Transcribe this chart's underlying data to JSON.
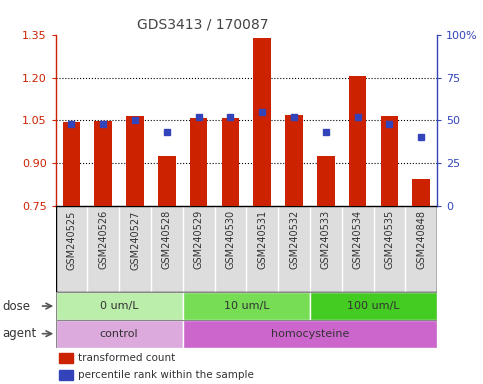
{
  "title": "GDS3413 / 170087",
  "samples": [
    "GSM240525",
    "GSM240526",
    "GSM240527",
    "GSM240528",
    "GSM240529",
    "GSM240530",
    "GSM240531",
    "GSM240532",
    "GSM240533",
    "GSM240534",
    "GSM240535",
    "GSM240848"
  ],
  "bar_values": [
    1.045,
    1.048,
    1.065,
    0.925,
    1.058,
    1.058,
    1.34,
    1.068,
    0.925,
    1.205,
    1.065,
    0.845
  ],
  "dot_percentiles": [
    48,
    48,
    50,
    43,
    52,
    52,
    55,
    52,
    43,
    52,
    48,
    40
  ],
  "ylim_left": [
    0.75,
    1.35
  ],
  "ylim_right": [
    0,
    100
  ],
  "yticks_left": [
    0.75,
    0.9,
    1.05,
    1.2,
    1.35
  ],
  "yticks_right": [
    0,
    25,
    50,
    75,
    100
  ],
  "bar_color": "#cc2200",
  "dot_color": "#3344bb",
  "title_color": "#444444",
  "left_axis_color": "#cc2200",
  "right_axis_color": "#3344bb",
  "dose_groups": [
    {
      "label": "0 um/L",
      "start": 0,
      "end": 4,
      "color": "#bbeeaa"
    },
    {
      "label": "10 um/L",
      "start": 4,
      "end": 8,
      "color": "#77dd55"
    },
    {
      "label": "100 um/L",
      "start": 8,
      "end": 12,
      "color": "#44cc22"
    }
  ],
  "agent_groups": [
    {
      "label": "control",
      "start": 0,
      "end": 4,
      "color": "#ddaadd"
    },
    {
      "label": "homocysteine",
      "start": 4,
      "end": 12,
      "color": "#cc66cc"
    }
  ],
  "dose_label": "dose",
  "agent_label": "agent",
  "legend_bar_label": "transformed count",
  "legend_dot_label": "percentile rank within the sample",
  "bar_width": 0.55,
  "dot_marker_size": 5
}
